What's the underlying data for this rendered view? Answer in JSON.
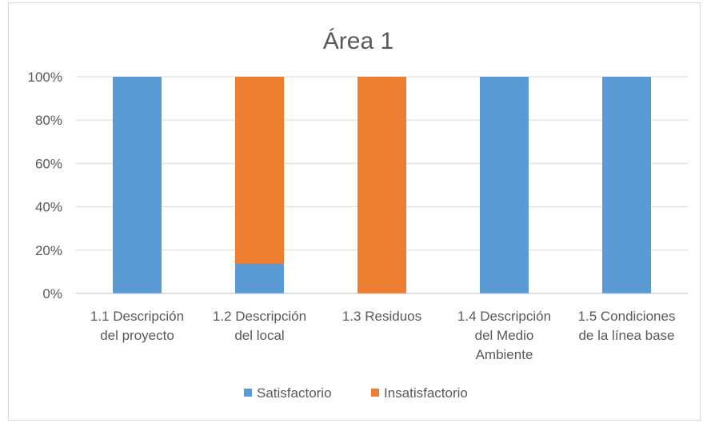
{
  "chart_data": {
    "type": "bar",
    "stacked": true,
    "percent_stacked": true,
    "title": "Área 1",
    "xlabel": "",
    "ylabel": "",
    "ylim": [
      0,
      100
    ],
    "yticks": [
      "0%",
      "20%",
      "40%",
      "60%",
      "80%",
      "100%"
    ],
    "categories": [
      [
        "1.1 Descripción",
        "del proyecto"
      ],
      [
        "1.2 Descripción",
        "del local"
      ],
      [
        "1.3 Residuos"
      ],
      [
        "1.4 Descripción",
        "del Medio",
        "Ambiente"
      ],
      [
        "1.5 Condiciones",
        "de la línea base"
      ]
    ],
    "series": [
      {
        "name": "Satisfactorio",
        "color": "#5b9bd5",
        "values": [
          100,
          14,
          0,
          100,
          100
        ]
      },
      {
        "name": "Insatisfactorio",
        "color": "#ed7d31",
        "values": [
          0,
          86,
          100,
          0,
          0
        ]
      }
    ],
    "grid": true,
    "legend": "bottom"
  }
}
